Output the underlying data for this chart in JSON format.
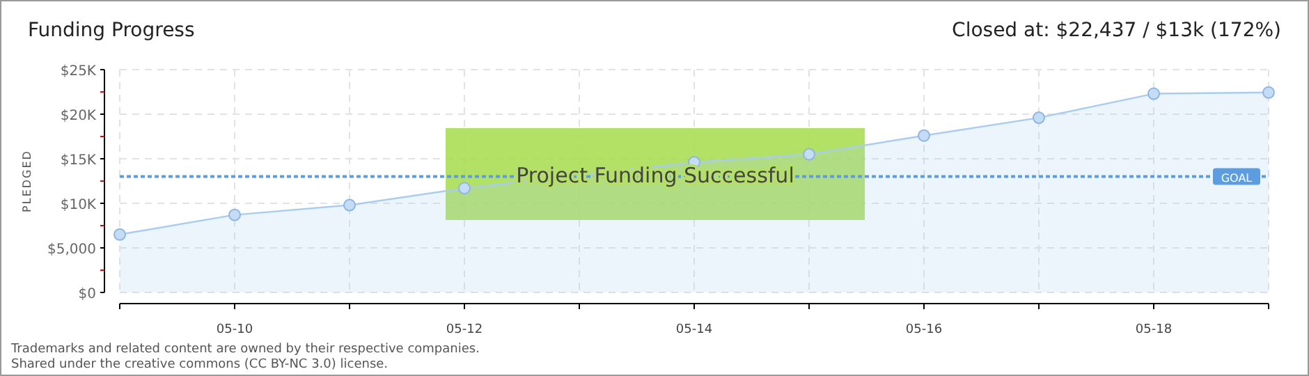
{
  "chart_data": {
    "type": "area",
    "title": "Funding Progress",
    "subtitle": "Closed at: $22,437 / $13k (172%)",
    "ylabel": "PLEDGED",
    "x": [
      "--05-09",
      "--05-10",
      "--05-11",
      "--05-12",
      "--05-13",
      "--05-14",
      "--05-15",
      "--05-16",
      "--05-17",
      "--05-18",
      "--05-19"
    ],
    "series": [
      {
        "color": "#a9cdf2",
        "values": [
          6500,
          8700,
          9800,
          11700,
          null,
          14600,
          15500,
          17600,
          19600,
          22300,
          22437
        ]
      }
    ],
    "xlim": [
      "--05-09",
      "--05-19"
    ],
    "xticks": [
      {
        "value": "--05-09",
        "label": null
      },
      {
        "value": "--05-10",
        "label": "05-10"
      },
      {
        "value": "--05-11",
        "label": null
      },
      {
        "value": "--05-12",
        "label": "05-12"
      },
      {
        "value": "--05-13",
        "label": null
      },
      {
        "value": "--05-14",
        "label": "05-14"
      },
      {
        "value": "--05-15",
        "label": null
      },
      {
        "value": "--05-16",
        "label": "05-16"
      },
      {
        "value": "--05-17",
        "label": null
      },
      {
        "value": "--05-18",
        "label": "05-18"
      },
      {
        "value": "--05-19",
        "label": null
      }
    ],
    "ylim": [
      0,
      25000
    ],
    "yticks": [
      {
        "value": 0,
        "label": "$0"
      },
      {
        "value": 2500,
        "label": null
      },
      {
        "value": 5000,
        "label": "$5,000"
      },
      {
        "value": 7500,
        "label": null
      },
      {
        "value": 10000,
        "label": "$10K"
      },
      {
        "value": 12500,
        "label": null
      },
      {
        "value": 15000,
        "label": "$15K"
      },
      {
        "value": 17500,
        "label": null
      },
      {
        "value": 20000,
        "label": "$20K"
      },
      {
        "value": 22500,
        "label": null
      },
      {
        "value": 25000,
        "label": "$25K"
      }
    ],
    "ref_lines": [
      {
        "axis": "y",
        "value": 13000,
        "label": "GOAL",
        "color": "#5b9de0",
        "line_style": "dotted"
      }
    ],
    "annotations": [
      "Project Funding Successful",
      "Trademarks and related content are owned by their respective companies.",
      "Shared under the creative commons (CC BY-NC 3.0) license."
    ],
    "grid": true,
    "marker": "circle"
  }
}
